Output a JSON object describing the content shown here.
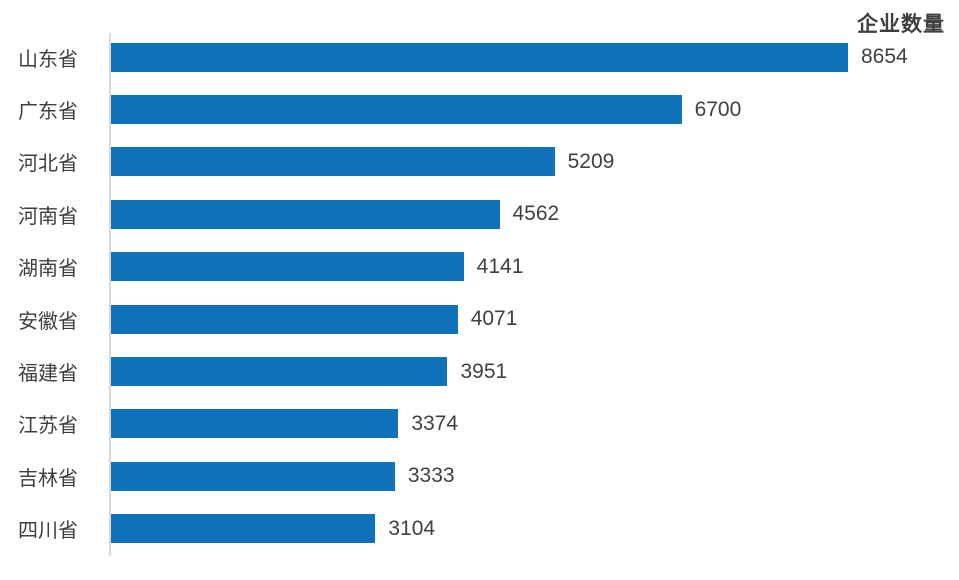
{
  "chart_data": {
    "type": "bar",
    "orientation": "horizontal",
    "title": "企业数量",
    "categories": [
      "山东省",
      "广东省",
      "河北省",
      "河南省",
      "湖南省",
      "安徽省",
      "福建省",
      "江苏省",
      "吉林省",
      "四川省"
    ],
    "values": [
      8654,
      6700,
      5209,
      4562,
      4141,
      4071,
      3951,
      3374,
      3333,
      3104
    ],
    "value_labels_shown": true,
    "xlabel": "",
    "ylabel": "",
    "xlim": [
      0,
      9950
    ],
    "grid": false,
    "legend_position": "top-right",
    "bar_color": "#1072BA",
    "axis_line_color": "#D9D9D9",
    "label_text_color": "#3F3F3F",
    "value_text_color": "#404040",
    "title_text_color": "#404040",
    "background_color": "#FFFFFF"
  }
}
